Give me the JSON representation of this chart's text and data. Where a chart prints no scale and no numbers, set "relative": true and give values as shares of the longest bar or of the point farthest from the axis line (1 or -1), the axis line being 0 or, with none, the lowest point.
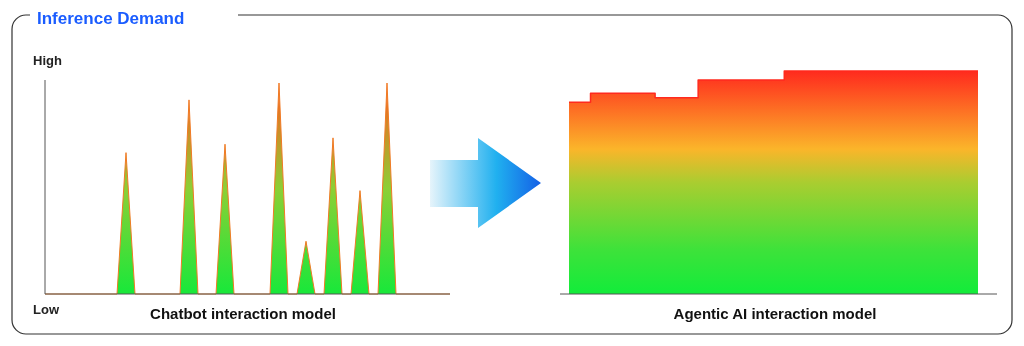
{
  "chart_data": [
    {
      "type": "area",
      "relative": true,
      "color": "#f07a25",
      "title": "Inference Demand",
      "xlabel": "Chatbot interaction model",
      "annotations": [
        "High",
        "Low"
      ],
      "categories": [
        null,
        null,
        null,
        null,
        null,
        null,
        null,
        null,
        null,
        null,
        null,
        null,
        null,
        null,
        null,
        null,
        null,
        null,
        null,
        null,
        null,
        null,
        null,
        null,
        null,
        null,
        null,
        null,
        null,
        null,
        null,
        null,
        null,
        null,
        null,
        null,
        null,
        null,
        null,
        null,
        null,
        null,
        null,
        null,
        null,
        null
      ],
      "values": [
        0,
        0,
        0,
        0,
        0,
        0,
        0,
        0,
        0,
        0.67,
        0,
        0,
        0,
        0,
        0,
        0,
        0.92,
        0,
        0,
        0,
        0.71,
        0,
        0,
        0,
        0,
        0,
        1,
        0,
        0,
        0.25,
        0,
        0,
        0.74,
        0,
        0,
        0.49,
        0,
        0,
        1,
        0,
        0,
        0,
        0,
        0,
        0,
        0
      ]
    },
    {
      "type": "step",
      "relative": true,
      "color": "#ff2a1e",
      "xlabel": "Agentic AI interaction model",
      "categories": [
        null,
        null,
        null,
        null,
        null,
        null,
        null,
        null,
        null,
        null,
        null,
        null,
        null,
        null,
        null,
        null,
        null,
        null,
        null,
        null
      ],
      "values": [
        0.86,
        0.9,
        0.9,
        0.9,
        0.88,
        0.88,
        0.96,
        0.96,
        0.96,
        0.96,
        1,
        1,
        1,
        1,
        1,
        1,
        1,
        1,
        1,
        1
      ]
    }
  ]
}
